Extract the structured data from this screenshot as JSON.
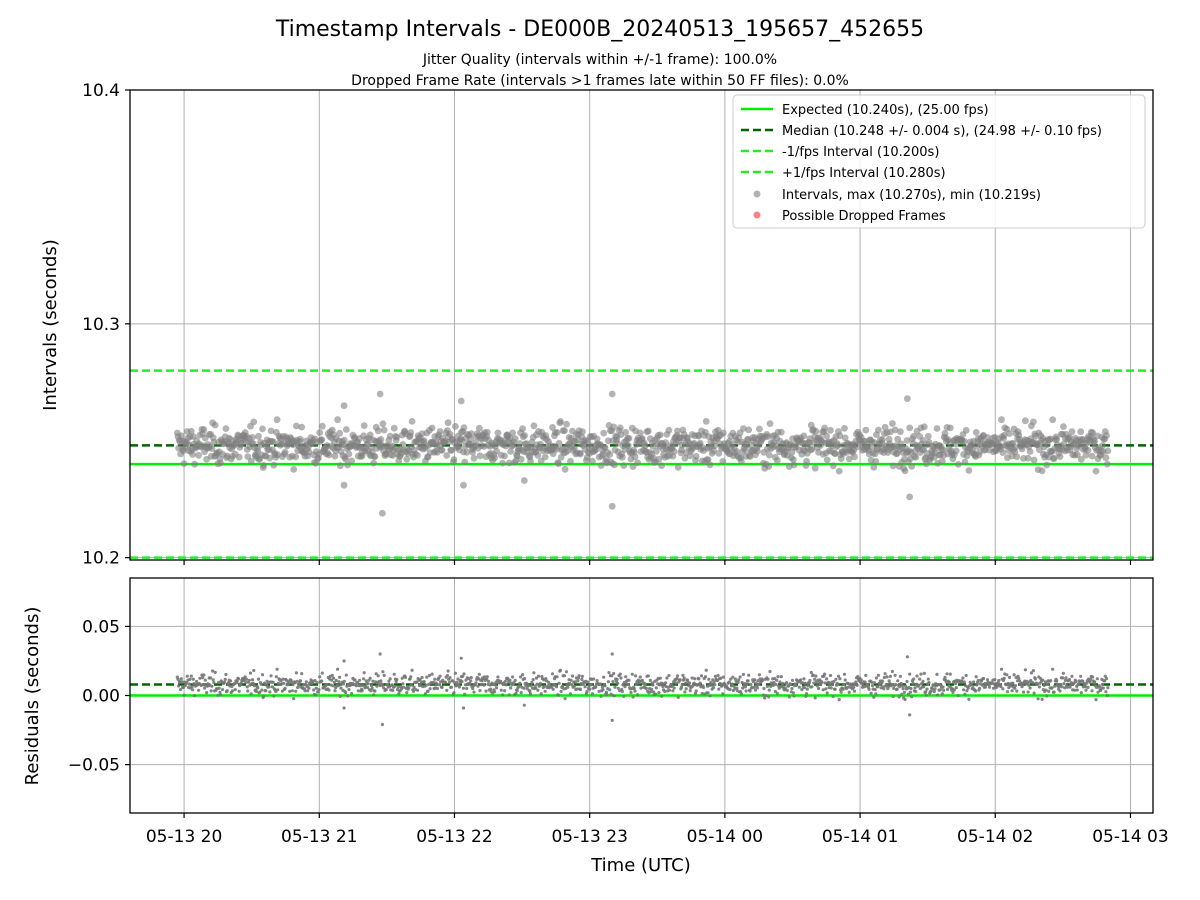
{
  "chart_data": [
    {
      "type": "scatter",
      "title": "Timestamp Intervals - DE000B_20240513_195657_452655",
      "subtitle_lines": [
        "Jitter Quality (intervals within +/-1 frame): 100.0%",
        "Dropped Frame Rate (intervals >1 frames late within 50 FF files): 0.0%"
      ],
      "ylabel": "Intervals (seconds)",
      "ylim": [
        10.199,
        10.4
      ],
      "yticks": [
        {
          "value": 10.2,
          "label": "10.2"
        },
        {
          "value": 10.3,
          "label": "10.3"
        },
        {
          "value": 10.4,
          "label": "10.4"
        }
      ],
      "grid": true,
      "legend_position": "top-right",
      "reference_lines": [
        {
          "name": "Expected (10.240s), (25.00 fps)",
          "value": 10.24,
          "color": "#00ee00",
          "style": "solid"
        },
        {
          "name": "Median (10.248 +/- 0.004 s), (24.98 +/- 0.10 fps)",
          "value": 10.248,
          "color": "#006400",
          "style": "dashed"
        },
        {
          "name": "-1/fps Interval (10.200s)",
          "value": 10.2,
          "color": "#22ee22",
          "style": "dashed"
        },
        {
          "name": "+1/fps Interval (10.280s)",
          "value": 10.28,
          "color": "#22ee22",
          "style": "dashed"
        }
      ],
      "series": [
        {
          "name": "Intervals, max (10.270s), min (10.219s)",
          "color": "#808080",
          "marker": "circle",
          "center": 10.248,
          "spread": 0.004,
          "max": 10.27,
          "min": 10.219
        },
        {
          "name": "Possible Dropped Frames",
          "color": "#ff6060",
          "marker": "circle",
          "values": []
        }
      ],
      "notable_points": [
        {
          "x": "2024-05-13 21:27",
          "y": 10.27
        },
        {
          "x": "2024-05-13 23:10",
          "y": 10.27
        },
        {
          "x": "2024-05-14 01:21",
          "y": 10.268
        },
        {
          "x": "2024-05-13 22:03",
          "y": 10.267
        },
        {
          "x": "2024-05-13 21:11",
          "y": 10.265
        },
        {
          "x": "2024-05-13 21:28",
          "y": 10.219
        },
        {
          "x": "2024-05-13 23:10",
          "y": 10.222
        },
        {
          "x": "2024-05-14 01:22",
          "y": 10.226
        },
        {
          "x": "2024-05-13 21:11",
          "y": 10.231
        },
        {
          "x": "2024-05-13 22:04",
          "y": 10.231
        },
        {
          "x": "2024-05-13 22:31",
          "y": 10.233
        }
      ]
    },
    {
      "type": "scatter",
      "xlabel": "Time (UTC)",
      "ylabel": "Residuals (seconds)",
      "ylim": [
        -0.085,
        0.085
      ],
      "yticks": [
        {
          "value": 0.05,
          "label": "0.05"
        },
        {
          "value": 0.0,
          "label": "0.00"
        },
        {
          "value": -0.05,
          "label": "−0.05"
        }
      ],
      "xlim": [
        "2024-05-13 19:36",
        "2024-05-14 03:10"
      ],
      "xticks": [
        {
          "value": "2024-05-13 20:00",
          "label": "05-13 20"
        },
        {
          "value": "2024-05-13 21:00",
          "label": "05-13 21"
        },
        {
          "value": "2024-05-13 22:00",
          "label": "05-13 22"
        },
        {
          "value": "2024-05-13 23:00",
          "label": "05-13 23"
        },
        {
          "value": "2024-05-14 00:00",
          "label": "05-14 00"
        },
        {
          "value": "2024-05-14 01:00",
          "label": "05-14 01"
        },
        {
          "value": "2024-05-14 02:00",
          "label": "05-14 02"
        },
        {
          "value": "2024-05-14 03:00",
          "label": "05-14 03"
        }
      ],
      "x_range_of_data": [
        "2024-05-13 19:57",
        "2024-05-14 02:50"
      ],
      "grid": true,
      "reference_lines": [
        {
          "value": 0.0,
          "color": "#00ee00",
          "style": "solid"
        },
        {
          "value": 0.008,
          "color": "#006400",
          "style": "dashed"
        }
      ],
      "series": [
        {
          "color": "#777777",
          "marker": "dot",
          "center": 0.008,
          "spread": 0.004,
          "max": 0.03,
          "min": -0.021
        }
      ]
    }
  ]
}
